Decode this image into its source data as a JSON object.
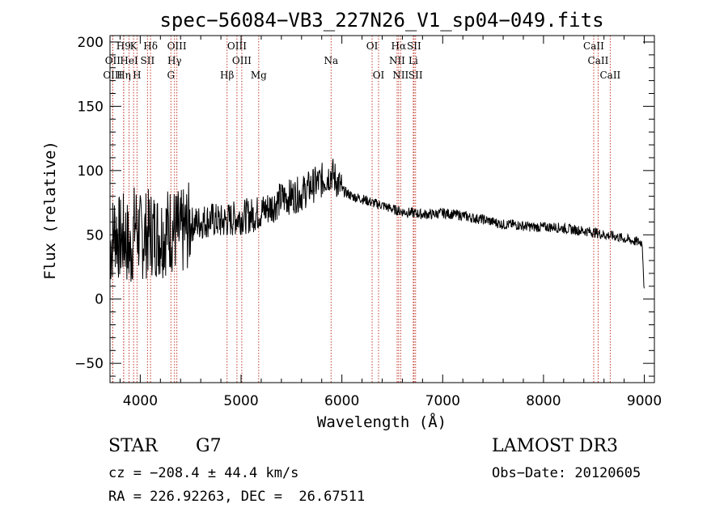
{
  "chart_data": {
    "type": "line",
    "title": "spec−56084−VB3_227N26_V1_sp04−049.fits",
    "xlabel": "Wavelength (Å)",
    "ylabel": "Flux (relative)",
    "xlim": [
      3700,
      9100
    ],
    "ylim": [
      -65,
      205
    ],
    "x_ticks": [
      4000,
      5000,
      6000,
      7000,
      8000,
      9000
    ],
    "x_tick_labels": [
      "4000",
      "5000",
      "6000",
      "7000",
      "8000",
      "9000"
    ],
    "y_ticks": [
      -50,
      0,
      50,
      100,
      150,
      200
    ],
    "y_tick_labels": [
      "−50",
      "0",
      "50",
      "100",
      "150",
      "200"
    ],
    "grid": false,
    "series": [
      {
        "name": "flux",
        "color": "#000000",
        "x": [
          3700,
          3750,
          3800,
          3850,
          3900,
          3950,
          4000,
          4100,
          4200,
          4300,
          4400,
          4500,
          4600,
          4700,
          4800,
          4900,
          5000,
          5100,
          5200,
          5300,
          5400,
          5500,
          5600,
          5700,
          5800,
          5900,
          6000,
          6100,
          6200,
          6300,
          6400,
          6500,
          6600,
          6700,
          6800,
          6900,
          7000,
          7100,
          7200,
          7300,
          7400,
          7500,
          7600,
          7700,
          7800,
          7900,
          8000,
          8100,
          8200,
          8300,
          8400,
          8500,
          8600,
          8700,
          8800,
          8900,
          8980,
          9000
        ],
        "values": [
          40,
          55,
          45,
          50,
          35,
          60,
          48,
          52,
          50,
          55,
          50,
          58,
          60,
          62,
          60,
          62,
          64,
          65,
          68,
          72,
          78,
          80,
          82,
          88,
          92,
          98,
          85,
          80,
          78,
          75,
          73,
          70,
          68,
          67,
          66,
          66,
          67,
          66,
          65,
          63,
          62,
          60,
          58,
          58,
          57,
          56,
          56,
          56,
          55,
          54,
          53,
          52,
          50,
          49,
          47,
          45,
          44,
          5
        ]
      }
    ],
    "spectral_lines": [
      {
        "label": "H9",
        "wavelength": 3835,
        "row": 0
      },
      {
        "label": "K",
        "wavelength": 3934,
        "row": 0
      },
      {
        "label": "Hδ",
        "wavelength": 4102,
        "row": 0
      },
      {
        "label": "OIII",
        "wavelength": 4363,
        "row": 0
      },
      {
        "label": "OIII",
        "wavelength": 4959,
        "row": 0
      },
      {
        "label": "OI",
        "wavelength": 6300,
        "row": 0
      },
      {
        "label": "Hα",
        "wavelength": 6563,
        "row": 0
      },
      {
        "label": "SII",
        "wavelength": 6716,
        "row": 0
      },
      {
        "label": "CaII",
        "wavelength": 8498,
        "row": 0
      },
      {
        "label": "OII",
        "wavelength": 3727,
        "row": 1
      },
      {
        "label": "HeI",
        "wavelength": 3889,
        "row": 1
      },
      {
        "label": "SII",
        "wavelength": 4072,
        "row": 1
      },
      {
        "label": "Hγ",
        "wavelength": 4340,
        "row": 1
      },
      {
        "label": "OIII",
        "wavelength": 5007,
        "row": 1
      },
      {
        "label": "Na",
        "wavelength": 5893,
        "row": 1
      },
      {
        "label": "NII",
        "wavelength": 6548,
        "row": 1
      },
      {
        "label": "Li",
        "wavelength": 6708,
        "row": 1
      },
      {
        "label": "CaII",
        "wavelength": 8542,
        "row": 1
      },
      {
        "label": "OIII",
        "wavelength": 3727,
        "row": 2
      },
      {
        "label": "Hη",
        "wavelength": 3836,
        "row": 2
      },
      {
        "label": "H",
        "wavelength": 3968,
        "row": 2
      },
      {
        "label": "G",
        "wavelength": 4304,
        "row": 2
      },
      {
        "label": "Hβ",
        "wavelength": 4861,
        "row": 2
      },
      {
        "label": "Mg",
        "wavelength": 5175,
        "row": 2
      },
      {
        "label": "OI",
        "wavelength": 6364,
        "row": 2
      },
      {
        "label": "NII",
        "wavelength": 6583,
        "row": 2
      },
      {
        "label": "SII",
        "wavelength": 6731,
        "row": 2
      },
      {
        "label": "CaII",
        "wavelength": 8662,
        "row": 2
      }
    ]
  },
  "info": {
    "object_class": "STAR",
    "subclass": "G7",
    "survey": "LAMOST DR3",
    "cz": "cz = −208.4 ± 44.4 km/s",
    "obs_date": "Obs−Date: 20120605",
    "radec": "RA = 226.92263, DEC =  26.67511"
  },
  "colors": {
    "spectrum": "#000000",
    "line_marker": "#c0392b",
    "axis": "#000000"
  }
}
